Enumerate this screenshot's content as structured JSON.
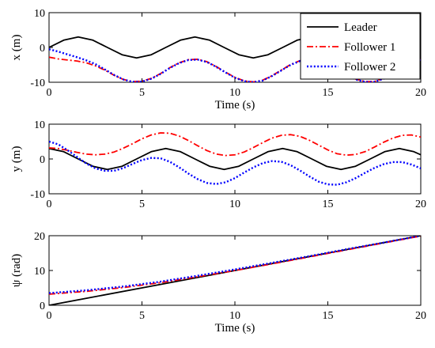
{
  "chart_data": [
    {
      "type": "line",
      "xlabel": "Time (s)",
      "ylabel": "x (m)",
      "xlim": [
        0,
        20
      ],
      "ylim": [
        -10,
        10
      ],
      "xticks": [
        0,
        5,
        10,
        15,
        20
      ],
      "yticks": [
        -10,
        0,
        10
      ],
      "legend": {
        "placement": "top-right"
      },
      "series": [
        {
          "name": "Leader",
          "color": "#000000",
          "style": "solid",
          "x": [
            0,
            0.79,
            1.57,
            2.36,
            3.14,
            3.93,
            4.71,
            5.5,
            6.28,
            7.07,
            7.85,
            8.64,
            9.42,
            10.21,
            10.99,
            11.78,
            12.57,
            13.35,
            14.14,
            14.92,
            15.71,
            16.49,
            17.28,
            18.06,
            18.85,
            19.63,
            20
          ],
          "values": [
            0,
            2.1,
            3,
            2.1,
            0,
            -2.1,
            -3,
            -2.1,
            0,
            2.1,
            3,
            2.1,
            0,
            -2.1,
            -3,
            -2.1,
            0,
            2.1,
            3,
            2.1,
            0,
            -2.1,
            -3,
            -2.1,
            0,
            2.1,
            2.8
          ]
        },
        {
          "name": "Follower 1",
          "color": "#ff0000",
          "style": "dashdot",
          "x": [
            0,
            0.5,
            1,
            1.5,
            2,
            2.5,
            3,
            3.5,
            4,
            4.5,
            5,
            5.5,
            6,
            6.5,
            7,
            7.5,
            8,
            8.5,
            9,
            9.5,
            10,
            10.5,
            11,
            11.5,
            12,
            12.5,
            13,
            13.5,
            14,
            14.5,
            15,
            15.5,
            16,
            16.5,
            17,
            17.5,
            18,
            18.5,
            19,
            19.5,
            20
          ],
          "values": [
            -2.8,
            -3.3,
            -3.6,
            -3.9,
            -4.4,
            -5.3,
            -6.5,
            -8.0,
            -9.2,
            -9.8,
            -9.7,
            -8.9,
            -7.5,
            -5.8,
            -4.4,
            -3.5,
            -3.4,
            -4.1,
            -5.5,
            -7.1,
            -8.6,
            -9.6,
            -9.9,
            -9.4,
            -8.1,
            -6.5,
            -4.9,
            -3.8,
            -3.3,
            -3.6,
            -4.6,
            -6.1,
            -7.7,
            -9.1,
            -9.8,
            -9.8,
            -8.9,
            -7.4,
            -5.7,
            -4.3,
            -3.5
          ]
        },
        {
          "name": "Follower 2",
          "color": "#0000ff",
          "style": "dotted",
          "x": [
            0,
            0.5,
            1,
            1.5,
            2,
            2.5,
            3,
            3.5,
            4,
            4.5,
            5,
            5.5,
            6,
            6.5,
            7,
            7.5,
            8,
            8.5,
            9,
            9.5,
            10,
            10.5,
            11,
            11.5,
            12,
            12.5,
            13,
            13.5,
            14,
            14.5,
            15,
            15.5,
            16,
            16.5,
            17,
            17.5,
            18,
            18.5,
            19,
            19.5,
            20
          ],
          "values": [
            -0.5,
            -1.2,
            -2.0,
            -2.8,
            -3.7,
            -4.8,
            -6.3,
            -7.9,
            -9.2,
            -9.9,
            -9.8,
            -9.0,
            -7.6,
            -5.9,
            -4.5,
            -3.6,
            -3.5,
            -4.2,
            -5.6,
            -7.2,
            -8.7,
            -9.7,
            -10.0,
            -9.5,
            -8.2,
            -6.6,
            -5.0,
            -3.9,
            -3.4,
            -3.7,
            -4.7,
            -6.2,
            -7.8,
            -9.2,
            -9.9,
            -9.9,
            -9.0,
            -7.5,
            -5.8,
            -4.4,
            -3.6
          ]
        }
      ]
    },
    {
      "type": "line",
      "xlabel": "",
      "ylabel": "y (m)",
      "xlim": [
        0,
        20
      ],
      "ylim": [
        -10,
        10
      ],
      "xticks": [
        0,
        5,
        10,
        15,
        20
      ],
      "yticks": [
        -10,
        0,
        10
      ],
      "series": [
        {
          "name": "Leader",
          "color": "#000000",
          "style": "solid",
          "x": [
            0,
            0.79,
            1.57,
            2.36,
            3.14,
            3.93,
            4.71,
            5.5,
            6.28,
            7.07,
            7.85,
            8.64,
            9.42,
            10.21,
            10.99,
            11.78,
            12.57,
            13.35,
            14.14,
            14.92,
            15.71,
            16.49,
            17.28,
            18.06,
            18.85,
            19.63,
            20
          ],
          "values": [
            3,
            2.1,
            0,
            -2.1,
            -3,
            -2.1,
            0,
            2.1,
            3,
            2.1,
            0,
            -2.1,
            -3,
            -2.1,
            0,
            2.1,
            3,
            2.1,
            0,
            -2.1,
            -3,
            -2.1,
            0,
            2.1,
            3,
            2.1,
            1.2
          ]
        },
        {
          "name": "Follower 1",
          "color": "#ff0000",
          "style": "dashdot",
          "x": [
            0,
            0.5,
            1,
            1.5,
            2,
            2.5,
            3,
            3.5,
            4,
            4.5,
            5,
            5.5,
            6,
            6.5,
            7,
            7.5,
            8,
            8.5,
            9,
            9.5,
            10,
            10.5,
            11,
            11.5,
            12,
            12.5,
            13,
            13.5,
            14,
            14.5,
            15,
            15.5,
            16,
            16.5,
            17,
            17.5,
            18,
            18.5,
            19,
            19.5,
            20
          ],
          "values": [
            3.2,
            3.0,
            2.5,
            1.9,
            1.4,
            1.2,
            1.4,
            2.0,
            3.1,
            4.4,
            5.8,
            6.9,
            7.5,
            7.4,
            6.6,
            5.3,
            3.8,
            2.4,
            1.4,
            1.0,
            1.2,
            2.0,
            3.3,
            4.7,
            6.0,
            6.8,
            7.0,
            6.5,
            5.4,
            4.0,
            2.6,
            1.5,
            1.1,
            1.3,
            2.1,
            3.4,
            4.8,
            6.0,
            6.8,
            6.9,
            6.3
          ]
        },
        {
          "name": "Follower 2",
          "color": "#0000ff",
          "style": "dotted",
          "x": [
            0,
            0.5,
            1,
            1.5,
            2,
            2.5,
            3,
            3.5,
            4,
            4.5,
            5,
            5.5,
            6,
            6.5,
            7,
            7.5,
            8,
            8.5,
            9,
            9.5,
            10,
            10.5,
            11,
            11.5,
            12,
            12.5,
            13,
            13.5,
            14,
            14.5,
            15,
            15.5,
            16,
            16.5,
            17,
            17.5,
            18,
            18.5,
            19,
            19.5,
            20
          ],
          "values": [
            5.0,
            4.2,
            2.5,
            0.6,
            -1.3,
            -2.7,
            -3.4,
            -3.4,
            -2.6,
            -1.4,
            -0.3,
            0.3,
            0.2,
            -0.8,
            -2.4,
            -4.2,
            -5.8,
            -6.9,
            -7.2,
            -6.7,
            -5.5,
            -3.9,
            -2.4,
            -1.2,
            -0.6,
            -0.8,
            -1.8,
            -3.3,
            -5.0,
            -6.5,
            -7.3,
            -7.4,
            -6.7,
            -5.5,
            -4.0,
            -2.6,
            -1.5,
            -0.9,
            -0.9,
            -1.6,
            -2.7
          ]
        }
      ]
    },
    {
      "type": "line",
      "xlabel": "Time (s)",
      "ylabel": "ψ (rad)",
      "xlim": [
        0,
        20
      ],
      "ylim": [
        0,
        20
      ],
      "xticks": [
        0,
        5,
        10,
        15,
        20
      ],
      "yticks": [
        0,
        10,
        20
      ],
      "series": [
        {
          "name": "Leader",
          "color": "#000000",
          "style": "solid",
          "x": [
            0,
            5,
            10,
            15,
            20
          ],
          "values": [
            0,
            5,
            10,
            15,
            20
          ]
        },
        {
          "name": "Follower 1",
          "color": "#ff0000",
          "style": "dashdot",
          "x": [
            0,
            2,
            4,
            6,
            8,
            10,
            12,
            14,
            16,
            18,
            20
          ],
          "values": [
            3.2,
            4.0,
            5.1,
            6.5,
            8.2,
            10.0,
            11.9,
            13.9,
            15.9,
            17.9,
            19.9
          ]
        },
        {
          "name": "Follower 2",
          "color": "#0000ff",
          "style": "dotted",
          "x": [
            0,
            2,
            4,
            6,
            8,
            10,
            12,
            14,
            16,
            18,
            20
          ],
          "values": [
            3.5,
            4.3,
            5.4,
            6.8,
            8.5,
            10.3,
            12.2,
            14.1,
            16.1,
            18.0,
            20.0
          ]
        }
      ]
    }
  ]
}
